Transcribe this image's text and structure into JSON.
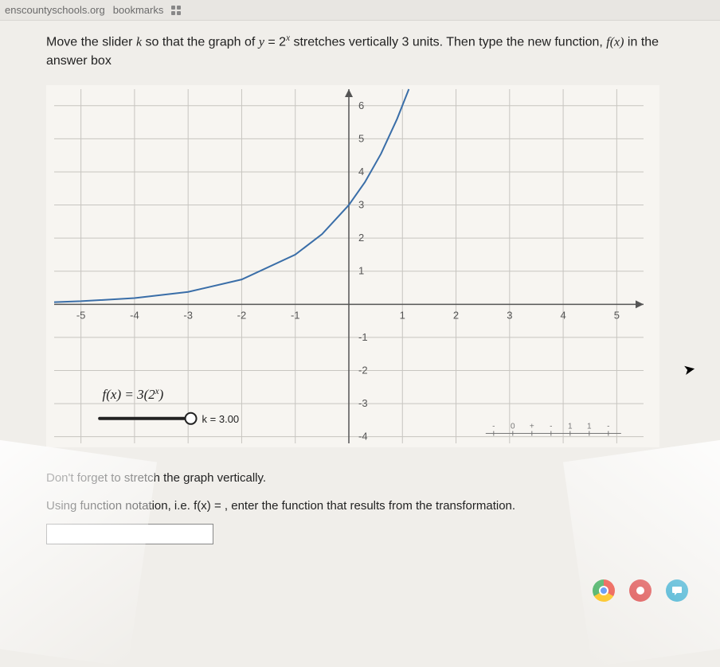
{
  "browser": {
    "url_fragment": "enscountyschools.org",
    "bookmarks_label": "bookmarks"
  },
  "instruction": {
    "pre": "Move the slider ",
    "k": "k",
    "mid1": " so that the graph of ",
    "eq_lhs": "y",
    "eq_eq": " = ",
    "eq_base": "2",
    "eq_exp": "x",
    "mid2": " stretches vertically 3 units. Then type the new function, ",
    "fx": "f(x)",
    "tail": " in the answer box"
  },
  "graph": {
    "type": "line",
    "background_color": "#f7f5f1",
    "grid_color": "#c7c5c0",
    "axis_color": "#555555",
    "curve_color": "#3a6ea8",
    "curve_width": 2,
    "xlim": [
      -5.5,
      5.5
    ],
    "ylim": [
      -4.2,
      6.5
    ],
    "xticks": [
      -5,
      -4,
      -3,
      -2,
      -1,
      1,
      2,
      3,
      4,
      5
    ],
    "yticks": [
      -4,
      -3,
      -2,
      -1,
      1,
      2,
      3,
      4,
      5,
      6
    ],
    "xtick_labels": [
      "-5",
      "-4",
      "-3",
      "-2",
      "-1",
      "1",
      "2",
      "3",
      "4",
      "5"
    ],
    "ytick_labels": [
      "-4",
      "-3",
      "-2",
      "-1",
      "1",
      "2",
      "3",
      "4",
      "5",
      "6"
    ],
    "tick_fontsize": 13,
    "tick_color": "#555555",
    "curve_points_x": [
      -5.5,
      -5,
      -4,
      -3,
      -2,
      -1,
      -0.5,
      0,
      0.3,
      0.6,
      0.9,
      1.12
    ],
    "curve_points_y": [
      0.066,
      0.094,
      0.188,
      0.375,
      0.75,
      1.5,
      2.121,
      3,
      3.69,
      4.547,
      5.6,
      6.5
    ],
    "function_label_pre": "f(x) = 3(2",
    "function_label_exp": "x",
    "function_label_post": ")",
    "function_label_fontsize": 17,
    "slider": {
      "label": "k = 3.00",
      "track_x1": -4.65,
      "track_x2": -2.95,
      "track_y": -3.45,
      "knob_x": -2.95,
      "knob_radius": 7,
      "track_color": "#222222",
      "knob_fill": "#ffffff",
      "knob_stroke": "#222222",
      "label_fontsize": 13
    },
    "mini_axis": {
      "x": 3.0,
      "y": -3.9,
      "ticks": [
        "-",
        "0",
        "+",
        "-",
        "1",
        "1",
        "-"
      ]
    }
  },
  "hint": "Don't forget to stretch the graph vertically.",
  "prompt": {
    "pre": "Using function notation, i.e. ",
    "fx": "f(x) = ",
    "post": ", enter the function that results from the transformation."
  },
  "answer_value": "",
  "bottom": {
    "icon1_color": "#ffffff",
    "icon2_color": "#d93a3a",
    "icon3_color": "#1aa0c8"
  }
}
